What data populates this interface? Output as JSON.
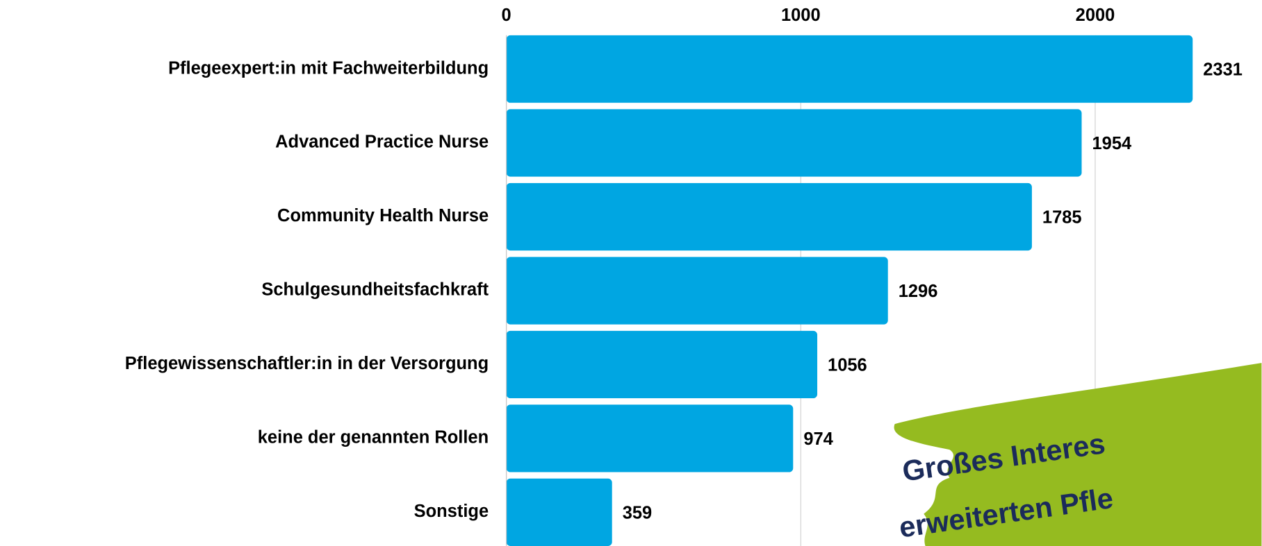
{
  "chart_data": {
    "type": "bar",
    "orientation": "horizontal",
    "categories": [
      "Pflegeexpert:in mit Fachweiterbildung",
      "Advanced Practice Nurse",
      "Community Health Nurse",
      "Schulgesundheitsfachkraft",
      "Pflegewissenschaftler:in in der Versorgung",
      "keine der genannten Rollen",
      "Sonstige"
    ],
    "values": [
      2331,
      1954,
      1785,
      1296,
      1056,
      974,
      359
    ],
    "color": "#00a6e2",
    "xlim": [
      0,
      2565
    ],
    "xticks": [
      0,
      1000,
      2000
    ],
    "grid": true,
    "annotation": [
      "Großes Interes",
      "erweiterten Pfle"
    ]
  }
}
